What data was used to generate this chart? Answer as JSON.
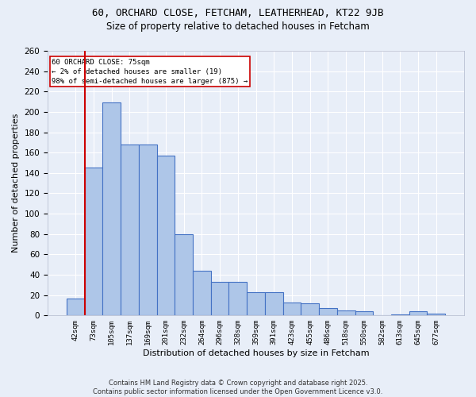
{
  "title1": "60, ORCHARD CLOSE, FETCHAM, LEATHERHEAD, KT22 9JB",
  "title2": "Size of property relative to detached houses in Fetcham",
  "xlabel": "Distribution of detached houses by size in Fetcham",
  "ylabel": "Number of detached properties",
  "bin_labels": [
    "42sqm",
    "73sqm",
    "105sqm",
    "137sqm",
    "169sqm",
    "201sqm",
    "232sqm",
    "264sqm",
    "296sqm",
    "328sqm",
    "359sqm",
    "391sqm",
    "423sqm",
    "455sqm",
    "486sqm",
    "518sqm",
    "550sqm",
    "582sqm",
    "613sqm",
    "645sqm",
    "677sqm"
  ],
  "bar_heights": [
    17,
    145,
    209,
    168,
    168,
    157,
    80,
    44,
    33,
    33,
    23,
    23,
    13,
    12,
    7,
    5,
    4,
    0,
    1,
    4,
    2
  ],
  "bar_color": "#aec6e8",
  "bar_edge_color": "#4472c4",
  "vline_color": "#cc0000",
  "annotation_text": "60 ORCHARD CLOSE: 75sqm\n← 2% of detached houses are smaller (19)\n98% of semi-detached houses are larger (875) →",
  "annotation_box_color": "#ffffff",
  "annotation_box_edge": "#cc0000",
  "ylim": [
    0,
    260
  ],
  "yticks": [
    0,
    20,
    40,
    60,
    80,
    100,
    120,
    140,
    160,
    180,
    200,
    220,
    240,
    260
  ],
  "bg_color": "#e8eef8",
  "grid_color": "#ffffff",
  "footer": "Contains HM Land Registry data © Crown copyright and database right 2025.\nContains public sector information licensed under the Open Government Licence v3.0."
}
